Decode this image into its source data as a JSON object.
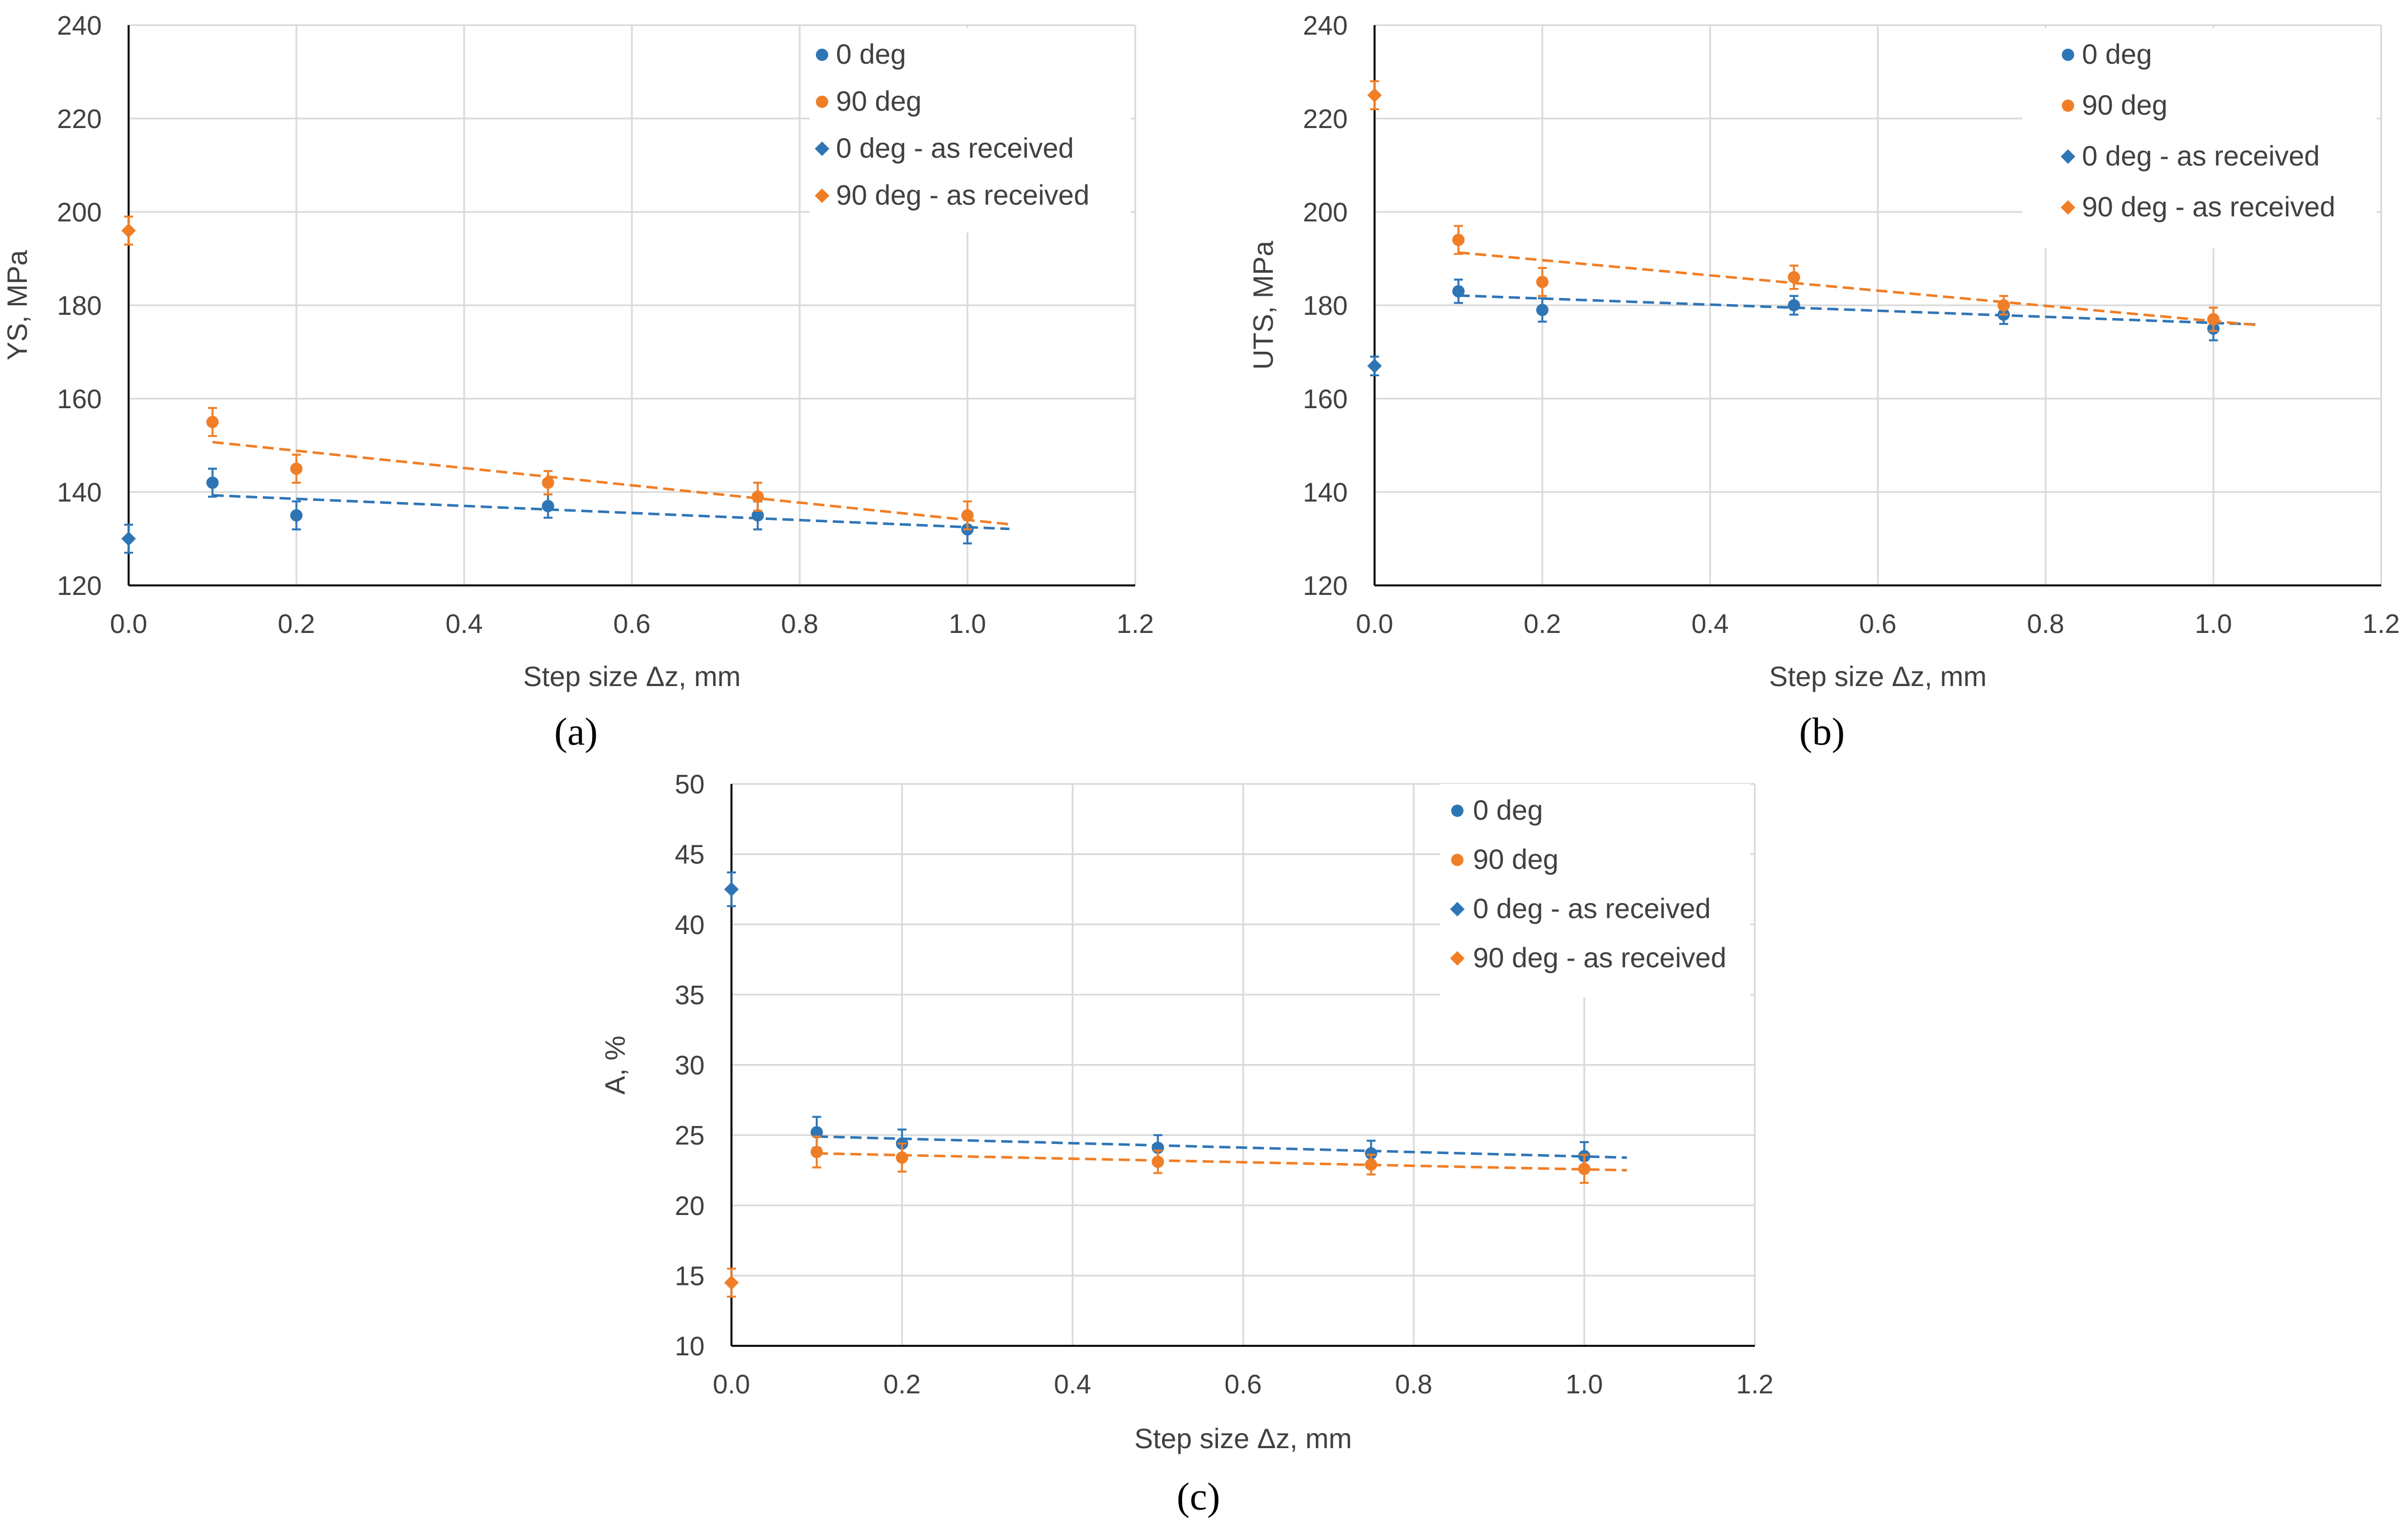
{
  "chart_data": [
    {
      "type": "scatter",
      "panel_label": "(a)",
      "title": "",
      "xlabel": "Step size Δz,  mm",
      "ylabel": "YS,  MPa",
      "xlim": [
        0,
        1.2
      ],
      "ylim": [
        120,
        240
      ],
      "x_ticks": [
        0,
        0.2,
        0.4,
        0.6,
        0.8,
        1.0,
        1.2
      ],
      "x_tick_labels": [
        "0.0",
        "0.2",
        "0.4",
        "0.6",
        "0.8",
        "1.0",
        "1.2"
      ],
      "y_ticks": [
        120,
        140,
        160,
        180,
        200,
        220,
        240
      ],
      "y_tick_labels": [
        "120",
        "140",
        "160",
        "180",
        "200",
        "220",
        "240"
      ],
      "grid": true,
      "legend_position": "top-right",
      "series": [
        {
          "name": "0 deg",
          "marker": "circle",
          "color": "#2E75B6",
          "x": [
            0.1,
            0.2,
            0.5,
            0.75,
            1.0
          ],
          "y": [
            142,
            135,
            137,
            135,
            132
          ],
          "yerr": [
            3,
            3,
            2.5,
            3,
            3
          ]
        },
        {
          "name": "90 deg",
          "marker": "circle",
          "color": "#F07E26",
          "x": [
            0.1,
            0.2,
            0.5,
            0.75,
            1.0
          ],
          "y": [
            155,
            145,
            142,
            139,
            135
          ],
          "yerr": [
            3,
            3,
            2.5,
            3,
            3
          ]
        },
        {
          "name": "0 deg - as received",
          "marker": "diamond",
          "color": "#2E75B6",
          "x": [
            0
          ],
          "y": [
            130
          ],
          "yerr": [
            3
          ]
        },
        {
          "name": "90 deg - as received",
          "marker": "diamond",
          "color": "#F07E26",
          "x": [
            0
          ],
          "y": [
            196
          ],
          "yerr": [
            3
          ]
        }
      ],
      "trendlines": [
        {
          "series": "0 deg",
          "color": "#2E75B6",
          "x": [
            0.1,
            1.05
          ],
          "y": [
            139.3,
            132.1
          ]
        },
        {
          "series": "90 deg",
          "color": "#F07E26",
          "x": [
            0.1,
            1.05
          ],
          "y": [
            150.7,
            133.1
          ]
        }
      ]
    },
    {
      "type": "scatter",
      "panel_label": "(b)",
      "title": "",
      "xlabel": "Step size Δz,  mm",
      "ylabel": "UTS,  MPa",
      "xlim": [
        0,
        1.2
      ],
      "ylim": [
        120,
        240
      ],
      "x_ticks": [
        0,
        0.2,
        0.4,
        0.6,
        0.8,
        1.0,
        1.2
      ],
      "x_tick_labels": [
        "0.0",
        "0.2",
        "0.4",
        "0.6",
        "0.8",
        "1.0",
        "1.2"
      ],
      "y_ticks": [
        120,
        140,
        160,
        180,
        200,
        220,
        240
      ],
      "y_tick_labels": [
        "120",
        "140",
        "160",
        "180",
        "200",
        "220",
        "240"
      ],
      "grid": true,
      "legend_position": "top-right",
      "series": [
        {
          "name": "0 deg",
          "marker": "circle",
          "color": "#2E75B6",
          "x": [
            0.1,
            0.2,
            0.5,
            0.75,
            1.0
          ],
          "y": [
            183,
            179,
            180,
            178,
            175
          ],
          "yerr": [
            2.5,
            2.5,
            2,
            2,
            2.5
          ]
        },
        {
          "name": "90 deg",
          "marker": "circle",
          "color": "#F07E26",
          "x": [
            0.1,
            0.2,
            0.5,
            0.75,
            1.0
          ],
          "y": [
            194,
            185,
            186,
            180,
            177
          ],
          "yerr": [
            3,
            3,
            2.5,
            2,
            2.5
          ]
        },
        {
          "name": "0 deg - as received",
          "marker": "diamond",
          "color": "#2E75B6",
          "x": [
            0
          ],
          "y": [
            167
          ],
          "yerr": [
            2
          ]
        },
        {
          "name": "90 deg - as received",
          "marker": "diamond",
          "color": "#F07E26",
          "x": [
            0
          ],
          "y": [
            225
          ],
          "yerr": [
            3
          ]
        }
      ],
      "trendlines": [
        {
          "series": "0 deg",
          "color": "#2E75B6",
          "x": [
            0.1,
            1.05
          ],
          "y": [
            182.1,
            175.9
          ]
        },
        {
          "series": "90 deg",
          "color": "#F07E26",
          "x": [
            0.1,
            1.05
          ],
          "y": [
            191.3,
            175.8
          ]
        }
      ]
    },
    {
      "type": "scatter",
      "panel_label": "(c)",
      "title": "",
      "xlabel": "Step size Δz,  mm",
      "ylabel": "A, %",
      "xlim": [
        0,
        1.2
      ],
      "ylim": [
        10,
        50
      ],
      "x_ticks": [
        0,
        0.2,
        0.4,
        0.6,
        0.8,
        1.0,
        1.2
      ],
      "x_tick_labels": [
        "0.0",
        "0.2",
        "0.4",
        "0.6",
        "0.8",
        "1.0",
        "1.2"
      ],
      "y_ticks": [
        10,
        15,
        20,
        25,
        30,
        35,
        40,
        45,
        50
      ],
      "y_tick_labels": [
        "10",
        "15",
        "20",
        "25",
        "30",
        "35",
        "40",
        "45",
        "50"
      ],
      "grid": true,
      "legend_position": "top-right",
      "series": [
        {
          "name": "0 deg",
          "marker": "circle",
          "color": "#2E75B6",
          "x": [
            0.1,
            0.2,
            0.5,
            0.75,
            1.0
          ],
          "y": [
            25.2,
            24.4,
            24.1,
            23.7,
            23.5
          ],
          "yerr": [
            1.1,
            1.0,
            0.9,
            0.9,
            1.0
          ]
        },
        {
          "name": "90 deg",
          "marker": "circle",
          "color": "#F07E26",
          "x": [
            0.1,
            0.2,
            0.5,
            0.75,
            1.0
          ],
          "y": [
            23.8,
            23.4,
            23.1,
            22.9,
            22.6
          ],
          "yerr": [
            1.1,
            1.0,
            0.8,
            0.7,
            1.0
          ]
        },
        {
          "name": "0 deg - as received",
          "marker": "diamond",
          "color": "#2E75B6",
          "x": [
            0
          ],
          "y": [
            42.5
          ],
          "yerr": [
            1.2
          ]
        },
        {
          "name": "90 deg - as received",
          "marker": "diamond",
          "color": "#F07E26",
          "x": [
            0
          ],
          "y": [
            14.5
          ],
          "yerr": [
            1.0
          ]
        }
      ],
      "trendlines": [
        {
          "series": "0 deg",
          "color": "#2E75B6",
          "x": [
            0.1,
            1.05
          ],
          "y": [
            24.9,
            23.4
          ]
        },
        {
          "series": "90 deg",
          "color": "#F07E26",
          "x": [
            0.1,
            1.05
          ],
          "y": [
            23.7,
            22.5
          ]
        }
      ]
    }
  ]
}
